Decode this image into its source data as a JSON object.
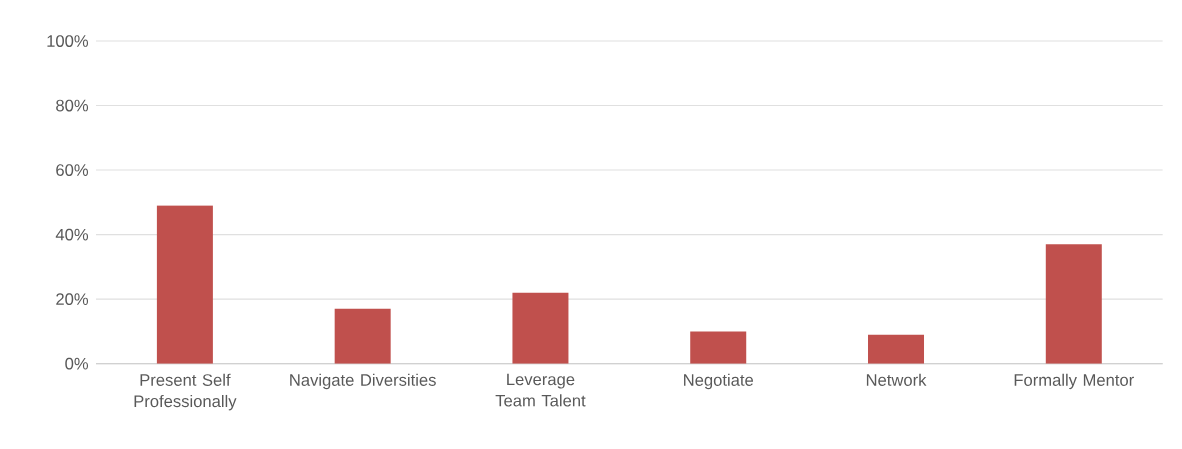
{
  "chart_data": {
    "type": "bar",
    "categories": [
      "Present Self Professionally",
      "Navigate Diversities",
      "Leverage Team Talent",
      "Negotiate",
      "Network",
      "Formally Mentor"
    ],
    "values": [
      49,
      17,
      22,
      10,
      9,
      37
    ],
    "color": "#c0504d",
    "ylim": [
      0,
      100
    ],
    "yticks": [
      {
        "value": 0,
        "label": "0%"
      },
      {
        "value": 20,
        "label": "20%"
      },
      {
        "value": 40,
        "label": "40%"
      },
      {
        "value": 60,
        "label": "60%"
      },
      {
        "value": 80,
        "label": "80%"
      },
      {
        "value": 100,
        "label": "100%"
      }
    ],
    "grid": "y"
  }
}
